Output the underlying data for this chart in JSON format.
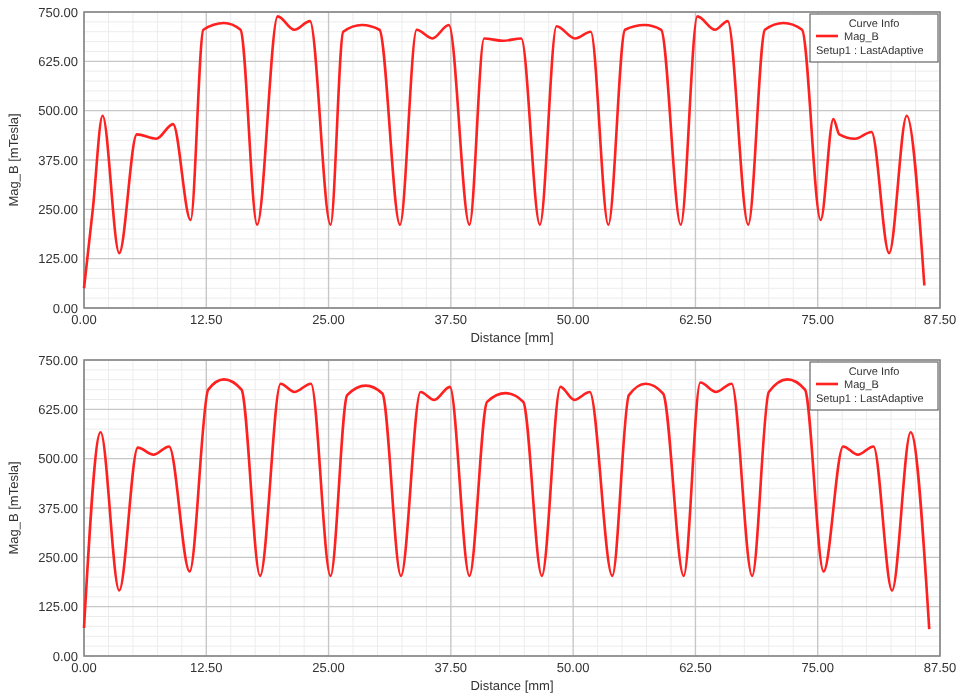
{
  "chart_data": [
    {
      "type": "line",
      "xlabel": "Distance [mm]",
      "ylabel": "Mag_B [mTesla]",
      "legend_title": "Curve Info",
      "annotations": [
        "Setup1 : LastAdaptive"
      ],
      "legend": "top right",
      "grid": true,
      "marker": "none",
      "line_style": "solid",
      "xlim": [
        0,
        87.5
      ],
      "ylim": [
        0,
        750
      ],
      "xticks": [
        {
          "value": 0,
          "label": "0.00"
        },
        {
          "value": 12.5,
          "label": "12.50"
        },
        {
          "value": 25,
          "label": "25.00"
        },
        {
          "value": 37.5,
          "label": "37.50"
        },
        {
          "value": 50,
          "label": "50.00"
        },
        {
          "value": 62.5,
          "label": "62.50"
        },
        {
          "value": 75,
          "label": "75.00"
        },
        {
          "value": 87.5,
          "label": "87.50"
        }
      ],
      "yticks": [
        {
          "value": 0,
          "label": "0.00"
        },
        {
          "value": 125,
          "label": "125.00"
        },
        {
          "value": 250,
          "label": "250.00"
        },
        {
          "value": 375,
          "label": "375.00"
        },
        {
          "value": 500,
          "label": "500.00"
        },
        {
          "value": 625,
          "label": "625.00"
        },
        {
          "value": 750,
          "label": "750.00"
        }
      ],
      "series": [
        {
          "name": "Mag_B",
          "color": "#ff2020",
          "x": [
            0,
            0.9,
            1.9,
            3.6,
            5.4,
            7.4,
            9.1,
            10.9,
            12.2,
            14.3,
            16.0,
            17.7,
            19.8,
            21.5,
            23.1,
            25.2,
            26.5,
            28.4,
            30.2,
            32.3,
            34.0,
            35.6,
            37.3,
            39.4,
            40.9,
            42.8,
            44.7,
            46.6,
            48.3,
            50.2,
            51.8,
            53.6,
            55.3,
            57.3,
            59.0,
            61.0,
            62.7,
            64.5,
            65.8,
            67.9,
            69.6,
            71.5,
            73.4,
            75.3,
            76.6,
            77.2,
            78.8,
            80.5,
            82.3,
            84.1,
            85.9
          ],
          "values": [
            50,
            250,
            487,
            139,
            440,
            429,
            466,
            223,
            705,
            722,
            705,
            211,
            739,
            705,
            727,
            211,
            700,
            717,
            705,
            211,
            705,
            683,
            717,
            211,
            683,
            677,
            683,
            211,
            714,
            683,
            700,
            211,
            705,
            717,
            705,
            211,
            739,
            705,
            727,
            211,
            705,
            722,
            705,
            223,
            479,
            440,
            429,
            446,
            139,
            487,
            57
          ]
        }
      ]
    },
    {
      "type": "line",
      "xlabel": "Distance [mm]",
      "ylabel": "Mag_B [mTesla]",
      "legend_title": "Curve Info",
      "annotations": [
        "Setup1 : LastAdaptive"
      ],
      "legend": "top right",
      "grid": true,
      "marker": "none",
      "line_style": "solid",
      "xlim": [
        0,
        87.5
      ],
      "ylim": [
        0,
        750
      ],
      "xticks": [
        {
          "value": 0,
          "label": "0.00"
        },
        {
          "value": 12.5,
          "label": "12.50"
        },
        {
          "value": 25,
          "label": "25.00"
        },
        {
          "value": 37.5,
          "label": "37.50"
        },
        {
          "value": 50,
          "label": "50.00"
        },
        {
          "value": 62.5,
          "label": "62.50"
        },
        {
          "value": 75,
          "label": "75.00"
        },
        {
          "value": 87.5,
          "label": "87.50"
        }
      ],
      "yticks": [
        {
          "value": 0,
          "label": "0.00"
        },
        {
          "value": 125,
          "label": "125.00"
        },
        {
          "value": 250,
          "label": "250.00"
        },
        {
          "value": 375,
          "label": "375.00"
        },
        {
          "value": 500,
          "label": "500.00"
        },
        {
          "value": 625,
          "label": "625.00"
        },
        {
          "value": 750,
          "label": "750.00"
        }
      ],
      "series": [
        {
          "name": "Mag_B",
          "color": "#ff2020",
          "x": [
            0,
            1.7,
            3.6,
            5.5,
            7.1,
            8.7,
            10.8,
            12.7,
            14.3,
            16.1,
            18.0,
            20.1,
            21.5,
            23.2,
            25.2,
            26.9,
            28.8,
            30.5,
            32.4,
            34.4,
            35.8,
            37.4,
            39.4,
            41.2,
            43.1,
            44.9,
            46.8,
            48.7,
            50.1,
            51.7,
            54.0,
            55.7,
            57.4,
            59.2,
            61.3,
            63.0,
            64.6,
            66.2,
            68.3,
            70.0,
            71.9,
            73.7,
            75.6,
            77.6,
            79.1,
            80.7,
            82.6,
            84.5,
            86.4
          ],
          "values": [
            71,
            567,
            166,
            528,
            510,
            531,
            214,
            675,
            701,
            675,
            203,
            690,
            669,
            690,
            203,
            661,
            685,
            665,
            203,
            669,
            649,
            682,
            203,
            644,
            666,
            644,
            203,
            682,
            649,
            669,
            203,
            661,
            690,
            665,
            203,
            693,
            669,
            690,
            203,
            669,
            701,
            675,
            214,
            531,
            510,
            531,
            166,
            567,
            68
          ]
        }
      ]
    }
  ]
}
